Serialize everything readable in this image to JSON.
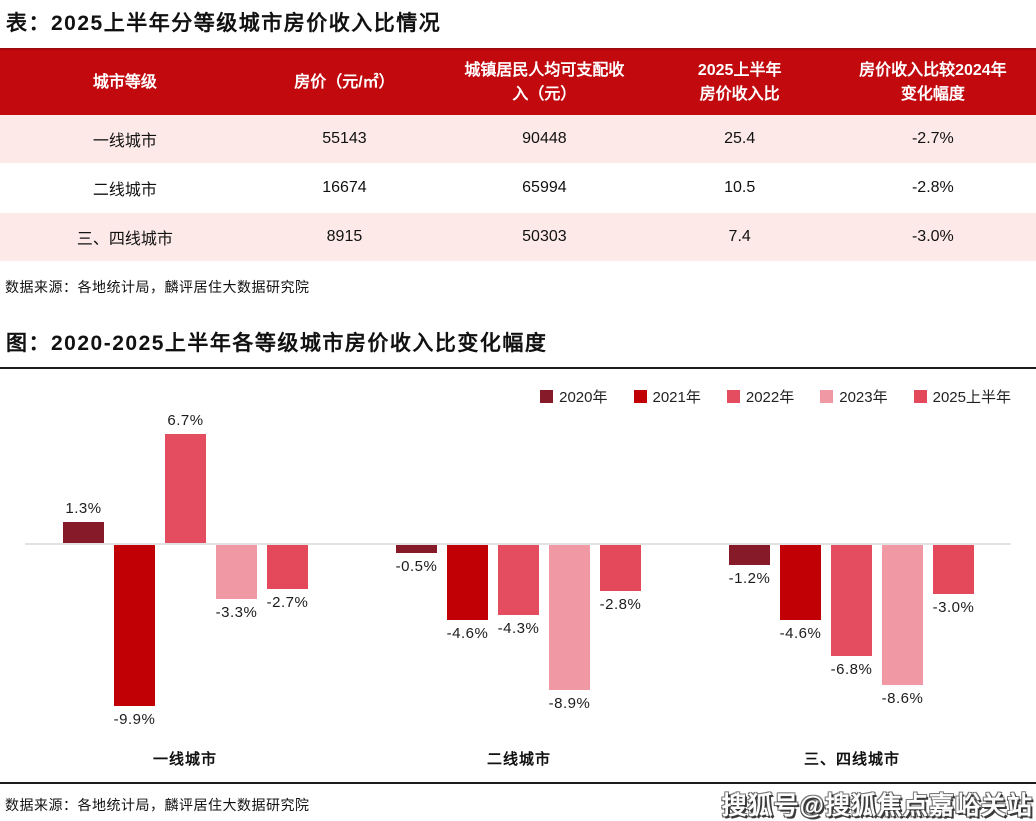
{
  "table_section": {
    "title": "表：2025上半年分等级城市房价收入比情况",
    "columns": [
      "城市等级",
      "房价（元/㎡）",
      "城镇居民人均可支配收\n入（元）",
      "2025上半年\n房价收入比",
      "房价收入比较2024年\n变化幅度"
    ],
    "rows": [
      {
        "tier": "一线城市",
        "price": "55143",
        "income": "90448",
        "ratio": "25.4",
        "change": "-2.7%"
      },
      {
        "tier": "二线城市",
        "price": "16674",
        "income": "65994",
        "ratio": "10.5",
        "change": "-2.8%"
      },
      {
        "tier": "三、四线城市",
        "price": "8915",
        "income": "50303",
        "ratio": "7.4",
        "change": "-3.0%"
      }
    ],
    "source": "数据来源：各地统计局，麟评居住大数据研究院"
  },
  "chart_section": {
    "title": "图：2020-2025上半年各等级城市房价收入比变化幅度",
    "source": "数据来源：各地统计局，麟评居住大数据研究院"
  },
  "chart_data": {
    "type": "bar",
    "categories": [
      "一线城市",
      "二线城市",
      "三、四线城市"
    ],
    "series": [
      {
        "name": "2020年",
        "color": "#871a28",
        "values": [
          1.3,
          -0.5,
          -1.2
        ]
      },
      {
        "name": "2021年",
        "color": "#c00004",
        "values": [
          -9.9,
          -4.6,
          -4.6
        ]
      },
      {
        "name": "2022年",
        "color": "#e44d60",
        "values": [
          6.7,
          -4.3,
          -6.8
        ]
      },
      {
        "name": "2023年",
        "color": "#f099a4",
        "values": [
          -3.3,
          -8.9,
          -8.6
        ]
      },
      {
        "name": "2025上半年",
        "color": "#e4495b",
        "values": [
          -2.7,
          -2.8,
          -3.0
        ]
      }
    ],
    "value_suffix": "%",
    "ylim": [
      -11,
      8.5
    ],
    "grid": false,
    "legend_position": "top-right",
    "zero_axis": true
  },
  "watermark": "搜狐号@搜狐焦点嘉峪关站",
  "colors": {
    "table_header_bg": "#c1090e",
    "row_alt_bg": "#fce9e8",
    "row_bg": "#ffffff"
  }
}
